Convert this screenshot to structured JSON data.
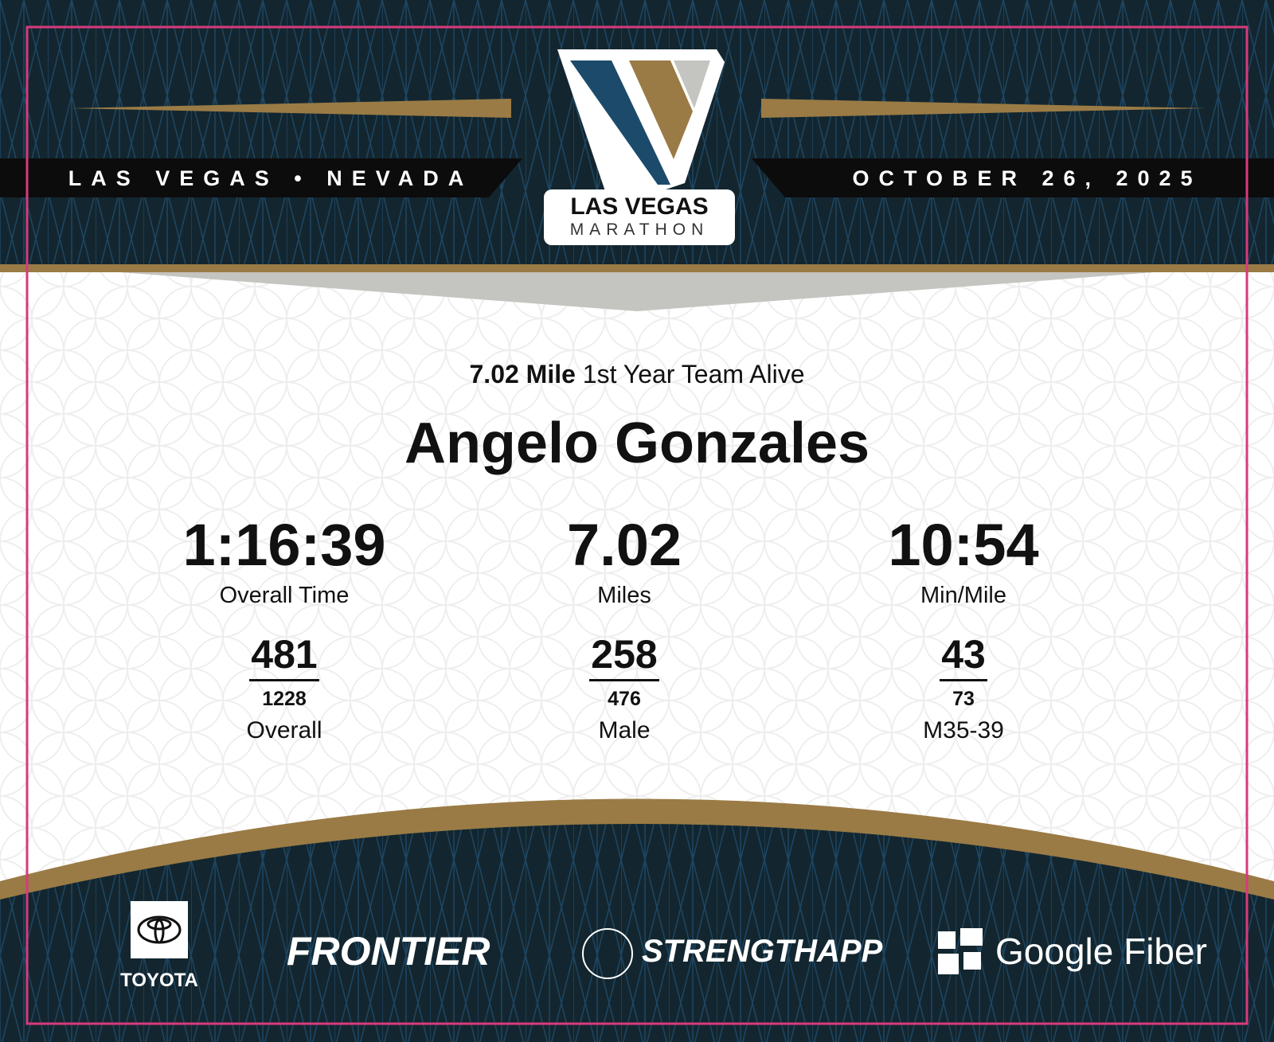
{
  "header": {
    "location": "LAS VEGAS • NEVADA",
    "date": "OCTOBER 26, 2025",
    "logo": {
      "line1": "LAS VEGAS",
      "line2": "MARATHON"
    }
  },
  "result": {
    "event_distance": "7.02 Mile",
    "team": "1st Year Team Alive",
    "athlete_name": "Angelo Gonzales",
    "stats": [
      {
        "value": "1:16:39",
        "label": "Overall Time"
      },
      {
        "value": "7.02",
        "label": "Miles"
      },
      {
        "value": "10:54",
        "label": "Min/Mile"
      }
    ],
    "ranks": [
      {
        "place": "481",
        "total": "1228",
        "label": "Overall"
      },
      {
        "place": "258",
        "total": "476",
        "label": "Male"
      },
      {
        "place": "43",
        "total": "73",
        "label": "M35-39"
      }
    ]
  },
  "sponsors": [
    {
      "name": "TOYOTA"
    },
    {
      "name": "FRONTIER"
    },
    {
      "name": "STRENGTHAPP"
    },
    {
      "name": "Google Fiber"
    }
  ],
  "colors": {
    "navy": "#13262f",
    "gold": "#9a7b45",
    "blue": "#1c4a6b",
    "gray": "#c4c4c0",
    "border": "#d83a7c"
  }
}
